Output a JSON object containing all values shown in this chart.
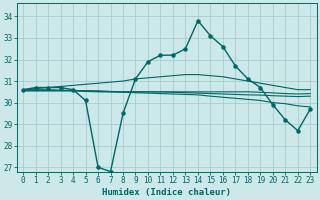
{
  "xlabel": "Humidex (Indice chaleur)",
  "background_color": "#cce8e8",
  "grid_color": "#a8cccc",
  "line_color": "#006666",
  "ylim": [
    26.8,
    34.6
  ],
  "xlim": [
    -0.5,
    23.5
  ],
  "yticks": [
    27,
    28,
    29,
    30,
    31,
    32,
    33,
    34
  ],
  "xticks": [
    0,
    1,
    2,
    3,
    4,
    5,
    6,
    7,
    8,
    9,
    10,
    11,
    12,
    13,
    14,
    15,
    16,
    17,
    18,
    19,
    20,
    21,
    22,
    23
  ],
  "xtick_labels": [
    "0",
    "1",
    "2",
    "3",
    "4",
    "5",
    "6",
    "7",
    "8",
    "9",
    "10",
    "11",
    "12",
    "13",
    "14",
    "15",
    "16",
    "17",
    "18",
    "19",
    "20",
    "21",
    "22",
    "23"
  ],
  "main_data": [
    30.6,
    30.7,
    30.7,
    30.7,
    30.6,
    30.1,
    27.0,
    26.8,
    29.5,
    31.1,
    31.9,
    32.2,
    32.2,
    32.5,
    33.8,
    33.1,
    32.6,
    31.7,
    31.1,
    30.7,
    29.9,
    29.2,
    28.7,
    29.7
  ],
  "line_wedge_top": [
    30.6,
    30.65,
    30.7,
    30.75,
    30.8,
    30.85,
    30.9,
    30.95,
    31.0,
    31.1,
    31.15,
    31.2,
    31.25,
    31.3,
    31.3,
    31.25,
    31.2,
    31.1,
    31.0,
    30.9,
    30.8,
    30.7,
    30.6,
    30.6
  ],
  "line_wedge_bottom": [
    30.6,
    30.6,
    30.6,
    30.58,
    30.56,
    30.54,
    30.52,
    30.5,
    30.48,
    30.46,
    30.44,
    30.42,
    30.4,
    30.38,
    30.36,
    30.3,
    30.25,
    30.2,
    30.15,
    30.1,
    30.0,
    29.95,
    29.85,
    29.8
  ],
  "line_flat1": [
    30.55,
    30.55,
    30.55,
    30.55,
    30.55,
    30.55,
    30.55,
    30.52,
    30.5,
    30.5,
    30.5,
    30.5,
    30.5,
    30.5,
    30.5,
    30.5,
    30.5,
    30.5,
    30.5,
    30.48,
    30.45,
    30.42,
    30.4,
    30.42
  ],
  "line_flat2": [
    30.55,
    30.55,
    30.55,
    30.55,
    30.55,
    30.52,
    30.5,
    30.5,
    30.5,
    30.5,
    30.5,
    30.5,
    30.48,
    30.46,
    30.44,
    30.42,
    30.4,
    30.38,
    30.36,
    30.35,
    30.32,
    30.3,
    30.28,
    30.3
  ]
}
